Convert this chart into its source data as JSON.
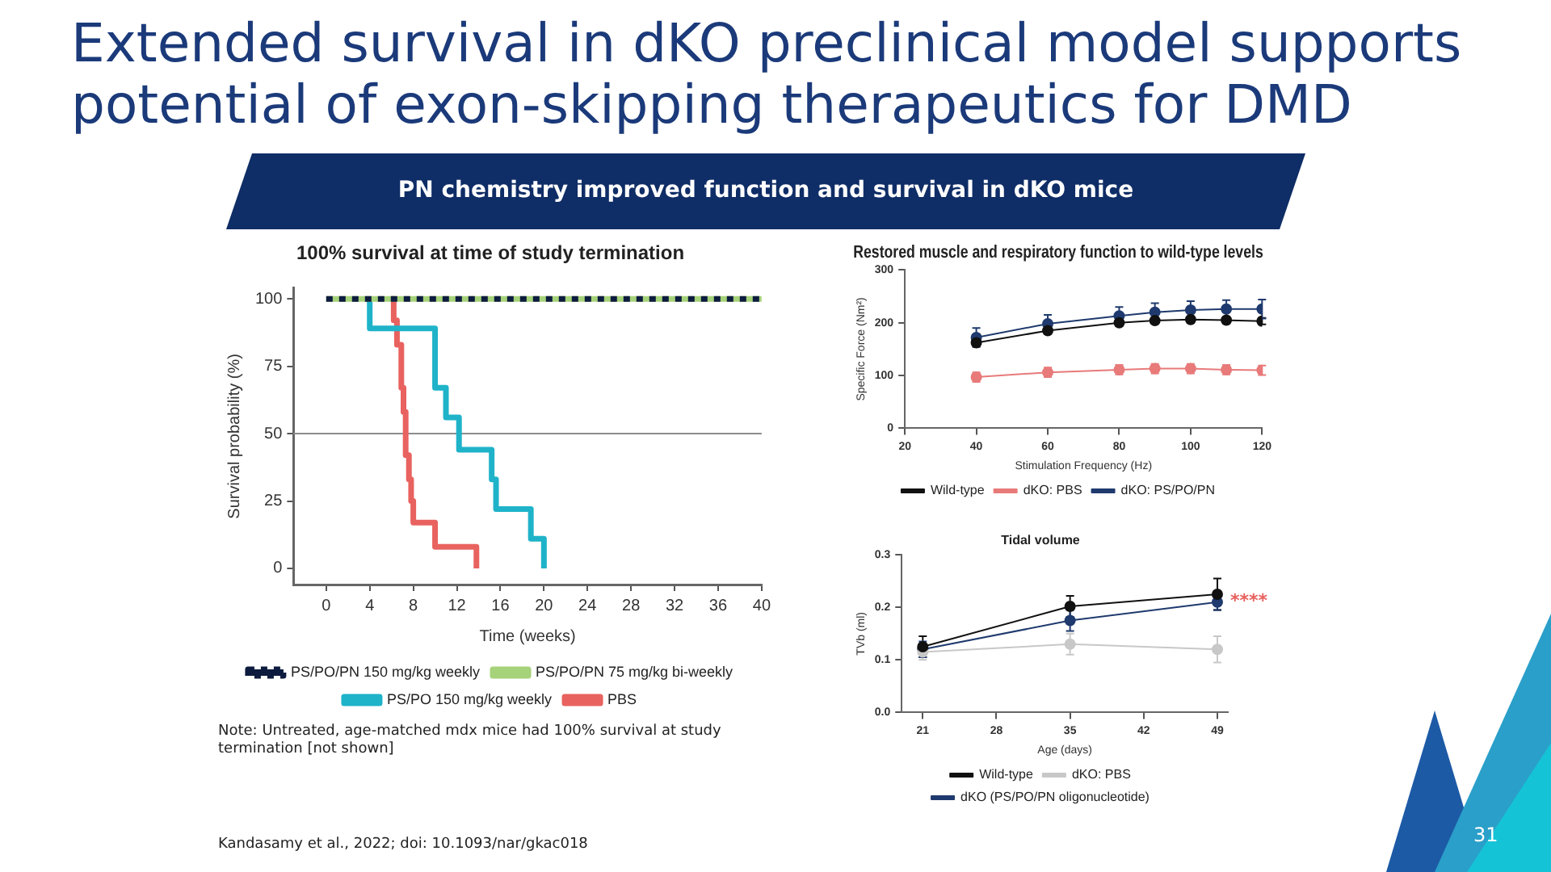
{
  "chart_data": [
    {
      "type": "other",
      "title": "Extended survival in dKO preclinical model supports potential of exon-skipping therapeutics for DMD",
      "subtitle": "PN chemistry improved function and survival in dKO mice",
      "annotations": [
        "Kandasamy et al., 2022; doi: 10.1093/nar/gkac018",
        "31"
      ]
    },
    {
      "type": "step",
      "title": "100% survival at time of study termination",
      "xlabel": "Time (weeks)",
      "ylabel": "Survival probability (%)",
      "xlim": [
        -3,
        40
      ],
      "xticks": [
        0,
        4,
        8,
        12,
        16,
        20,
        24,
        28,
        32,
        36,
        40
      ],
      "ylim": [
        -6,
        104
      ],
      "yticks": [
        0,
        25,
        50,
        75,
        100
      ],
      "grid": false,
      "legend": "bottom",
      "marker": "none",
      "ref_lines": [
        {
          "axis": "y",
          "value": 50,
          "color": "#8c8c8c"
        }
      ],
      "annotations": [
        "Note: Untreated, age-matched mdx mice had 100% survival at study termination [not shown]"
      ],
      "series": [
        {
          "name": "PS/PO/PN 150 mg/kg weekly",
          "color": "#0d1b3e",
          "line_style": "dotted",
          "x": [
            0,
            40
          ],
          "values": [
            100,
            100
          ]
        },
        {
          "name": "PS/PO/PN 75 mg/kg bi-weekly",
          "color": "#a6d27a",
          "x": [
            0,
            40
          ],
          "values": [
            100,
            100
          ]
        },
        {
          "name": "PS/PO 150 mg/kg weekly",
          "color": "#1fb3c9",
          "x": [
            4,
            4,
            10,
            11,
            12.2,
            15.2,
            15.6,
            18.8,
            20
          ],
          "values": [
            100,
            89,
            67,
            56,
            44,
            33,
            22,
            11,
            0
          ]
        },
        {
          "name": "PBS",
          "color": "#e8625f",
          "x": [
            6,
            6.2,
            6.5,
            6.9,
            7.1,
            7.3,
            7.6,
            7.8,
            8,
            10,
            13.8
          ],
          "values": [
            100,
            92,
            83,
            67,
            58,
            42,
            33,
            25,
            17,
            8,
            0
          ]
        }
      ]
    },
    {
      "type": "line",
      "title": "Restored muscle and respiratory function to wild-type levels",
      "xlabel": "Stimulation Frequency (Hz)",
      "ylabel": "Specific Force (Nm²)",
      "x": [
        40,
        60,
        80,
        90,
        100,
        110,
        120
      ],
      "xlim": [
        20,
        120
      ],
      "xticks": [
        20,
        40,
        60,
        80,
        100,
        120
      ],
      "ylim": [
        0,
        300
      ],
      "yticks": [
        0,
        100,
        200,
        300
      ],
      "grid": false,
      "legend": "bottom",
      "marker": "circle",
      "series": [
        {
          "name": "Wild-type",
          "color": "#111111",
          "values": [
            162,
            185,
            200,
            204,
            206,
            205,
            203
          ],
          "errors": [
            6,
            6,
            6,
            6,
            6,
            6,
            6
          ]
        },
        {
          "name": "dKO: PBS",
          "color": "#e87a7a",
          "values": [
            97,
            106,
            111,
            113,
            113,
            111,
            110
          ],
          "errors": [
            9,
            9,
            9,
            9,
            9,
            9,
            9
          ]
        },
        {
          "name": "dKO: PS/PO/PN",
          "color": "#1f3a6e",
          "values": [
            172,
            198,
            213,
            220,
            224,
            226,
            226
          ],
          "errors": [
            18,
            17,
            17,
            17,
            17,
            17,
            18
          ]
        }
      ]
    },
    {
      "type": "line",
      "title": "Tidal volume",
      "xlabel": "Age (days)",
      "ylabel": "TVb (ml)",
      "x": [
        21,
        35,
        49
      ],
      "xlim": [
        19,
        50
      ],
      "xticks": [
        21,
        28,
        35,
        42,
        49
      ],
      "ylim": [
        0,
        0.3
      ],
      "yticks": [
        {
          "value": 0,
          "label": "0.0"
        },
        0.1,
        0.2,
        0.3
      ],
      "grid": false,
      "legend": "bottom",
      "marker": "circle",
      "annotations": [
        {
          "text": "****",
          "x": 49,
          "y": 0.21
        }
      ],
      "series": [
        {
          "name": "Wild-type",
          "color": "#111111",
          "values": [
            0.125,
            0.202,
            0.225
          ],
          "errors": [
            0.02,
            0.02,
            0.03
          ]
        },
        {
          "name": "dKO: PBS",
          "color": "#c8c8c8",
          "values": [
            0.115,
            0.13,
            0.12
          ],
          "errors": [
            0.015,
            0.02,
            0.025
          ]
        },
        {
          "name": "dKO (PS/PO/PN oligonucleotide)",
          "color": "#1f3a6e",
          "values": [
            0.12,
            0.175,
            0.21
          ],
          "errors": [
            0.015,
            0.02,
            0.015
          ]
        }
      ]
    }
  ]
}
